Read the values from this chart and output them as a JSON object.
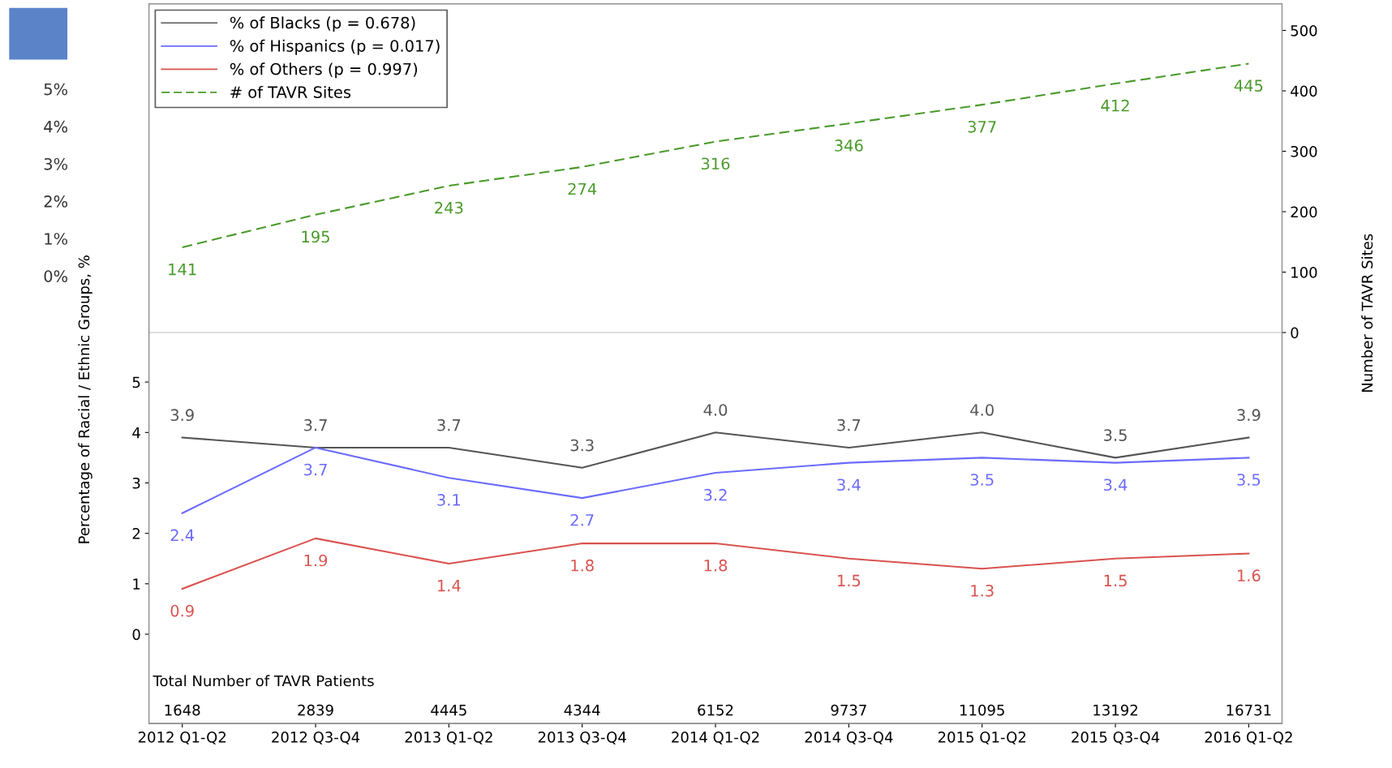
{
  "chart_data": {
    "type": "line",
    "categories": [
      "2012 Q1-Q2",
      "2012 Q3-Q4",
      "2013 Q1-Q2",
      "2013 Q3-Q4",
      "2014 Q1-Q2",
      "2014 Q3-Q4",
      "2015 Q1-Q2",
      "2015 Q3-Q4",
      "2016 Q1-Q2"
    ],
    "series": [
      {
        "name": "% of Blacks (p = 0.678)",
        "color": "#555555",
        "values": [
          3.9,
          3.7,
          3.7,
          3.3,
          4.0,
          3.7,
          4.0,
          3.5,
          3.9
        ],
        "value_labels": [
          "3.9",
          "3.7",
          "3.7",
          "3.3",
          "4.0",
          "3.7",
          "4.0",
          "3.5",
          "3.9"
        ]
      },
      {
        "name": "% of Hispanics (p = 0.017)",
        "color": "#6b6bff",
        "values": [
          2.4,
          3.7,
          3.1,
          2.7,
          3.2,
          3.4,
          3.5,
          3.4,
          3.5
        ],
        "value_labels": [
          "2.4",
          "3.7",
          "3.1",
          "2.7",
          "3.2",
          "3.4",
          "3.5",
          "3.4",
          "3.5"
        ]
      },
      {
        "name": "% of Others (p = 0.997)",
        "color": "#d9534f",
        "values": [
          0.9,
          1.9,
          1.4,
          1.8,
          1.8,
          1.5,
          1.3,
          1.5,
          1.6
        ],
        "value_labels": [
          "0.9",
          "1.9",
          "1.4",
          "1.8",
          "1.8",
          "1.5",
          "1.3",
          "1.5",
          "1.6"
        ]
      },
      {
        "name": "# of TAVR Sites",
        "color": "#4a9a2a",
        "axis": "y2",
        "line_style": "dashed",
        "values": [
          141,
          195,
          243,
          274,
          316,
          346,
          377,
          412,
          445
        ],
        "value_labels": [
          "141",
          "195",
          "243",
          "274",
          "316",
          "346",
          "377",
          "412",
          "445"
        ]
      }
    ],
    "ylabel": "Percentage of Racial / Ethnic Groups, %",
    "y2label": "Number of TAVR Sites",
    "ylim": [
      -1.77,
      12.5
    ],
    "yticks": [
      0,
      1,
      2,
      3,
      4,
      5
    ],
    "y2lim": [
      -647,
      544
    ],
    "y2ticks": [
      0,
      100,
      200,
      300,
      400,
      500
    ],
    "ref_lines": [
      {
        "axis": "y2",
        "value": 0,
        "color": "#dddddd"
      }
    ],
    "legend": "top left",
    "grid": false,
    "annotations": [
      "Total Number of TAVR Patients",
      "1648",
      "2839",
      "4445",
      "4344",
      "6152",
      "9737",
      "11095",
      "13192",
      "16731",
      "5%",
      "4%",
      "3%",
      "2%",
      "1%",
      "0%"
    ]
  }
}
